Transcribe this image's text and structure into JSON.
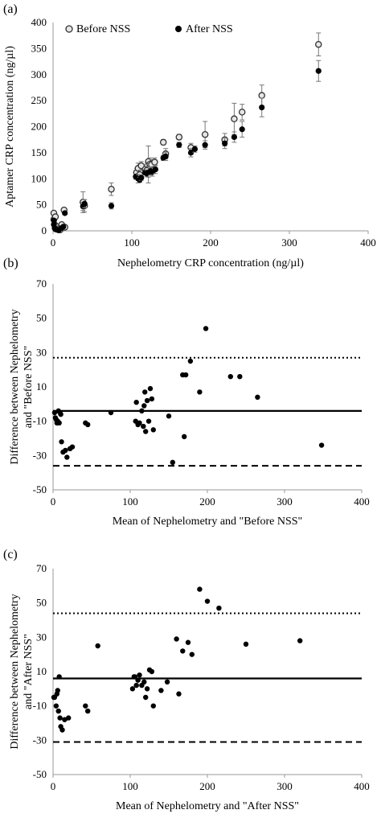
{
  "chart_data": [
    {
      "type": "scatter",
      "panel_label": "(a)",
      "xlabel": "Nephelometry CRP concentration (ng/µl)",
      "ylabel": "Aptamer CRP concentration (ng/µl)",
      "xlim": [
        0,
        400
      ],
      "ylim": [
        0,
        400
      ],
      "xticks": [
        0,
        100,
        200,
        300,
        400
      ],
      "yticks": [
        0,
        50,
        100,
        150,
        200,
        250,
        300,
        350,
        400
      ],
      "grid": false,
      "legend_position": "top",
      "series": [
        {
          "name": "Before NSS",
          "marker": "open-circle",
          "points": [
            [
              1,
              34
            ],
            [
              1,
              22
            ],
            [
              2,
              12
            ],
            [
              3,
              27
            ],
            [
              4,
              5
            ],
            [
              5,
              8
            ],
            [
              7,
              4
            ],
            [
              9,
              2
            ],
            [
              11,
              12
            ],
            [
              14,
              40
            ],
            [
              15,
              7
            ],
            [
              38,
              55
            ],
            [
              40,
              48
            ],
            [
              74,
              80
            ],
            [
              106,
              112
            ],
            [
              108,
              120
            ],
            [
              110,
              108
            ],
            [
              112,
              125
            ],
            [
              117,
              118
            ],
            [
              119,
              116
            ],
            [
              121,
              133
            ],
            [
              123,
              128
            ],
            [
              125,
              127
            ],
            [
              129,
              132
            ],
            [
              140,
              170
            ],
            [
              143,
              148
            ],
            [
              160,
              180
            ],
            [
              175,
              160
            ],
            [
              193,
              185
            ],
            [
              218,
              175
            ],
            [
              230,
              215
            ],
            [
              240,
              228
            ],
            [
              265,
              260
            ],
            [
              337,
              358
            ]
          ],
          "errors": [
            0,
            0,
            0,
            0,
            0,
            0,
            0,
            0,
            0,
            0,
            0,
            20,
            12,
            12,
            8,
            10,
            8,
            8,
            10,
            8,
            30,
            12,
            10,
            8,
            5,
            10,
            5,
            8,
            25,
            12,
            30,
            15,
            20,
            22
          ]
        },
        {
          "name": "After NSS",
          "marker": "filled-circle",
          "points": [
            [
              1,
              20
            ],
            [
              1,
              12
            ],
            [
              2,
              5
            ],
            [
              3,
              3
            ],
            [
              5,
              2
            ],
            [
              7,
              1
            ],
            [
              10,
              5
            ],
            [
              13,
              8
            ],
            [
              15,
              34
            ],
            [
              38,
              47
            ],
            [
              40,
              52
            ],
            [
              74,
              48
            ],
            [
              105,
              104
            ],
            [
              108,
              100
            ],
            [
              110,
              98
            ],
            [
              112,
              102
            ],
            [
              117,
              112
            ],
            [
              119,
              110
            ],
            [
              121,
              112
            ],
            [
              124,
              115
            ],
            [
              126,
              113
            ],
            [
              130,
              118
            ],
            [
              140,
              140
            ],
            [
              143,
              143
            ],
            [
              160,
              165
            ],
            [
              175,
              150
            ],
            [
              180,
              157
            ],
            [
              193,
              165
            ],
            [
              218,
              168
            ],
            [
              230,
              180
            ],
            [
              240,
              195
            ],
            [
              265,
              237
            ],
            [
              337,
              307
            ]
          ],
          "errors": [
            0,
            0,
            0,
            0,
            0,
            0,
            0,
            0,
            0,
            8,
            8,
            6,
            5,
            8,
            5,
            5,
            5,
            6,
            20,
            8,
            8,
            8,
            5,
            8,
            5,
            8,
            6,
            8,
            10,
            10,
            15,
            18,
            20
          ]
        }
      ]
    },
    {
      "type": "scatter",
      "panel_label": "(b)",
      "xlabel": "Mean of Nephelometry and \"Before NSS\"",
      "ylabel_lines": [
        "Difference between Nephelometry",
        "and \"Before NSS\""
      ],
      "xlim": [
        0,
        400
      ],
      "ylim": [
        -50,
        70
      ],
      "xticks": [
        0,
        100,
        200,
        300,
        400
      ],
      "yticks": [
        -50,
        -30,
        -10,
        10,
        30,
        50,
        70
      ],
      "grid": false,
      "reference_lines": [
        {
          "role": "mean",
          "y": -4,
          "style": "solid"
        },
        {
          "role": "upper",
          "y": 27,
          "style": "dotted"
        },
        {
          "role": "lower",
          "y": -36,
          "style": "dashed"
        }
      ],
      "points": [
        [
          2,
          -5
        ],
        [
          3,
          -8
        ],
        [
          4,
          -9
        ],
        [
          5,
          -11
        ],
        [
          6,
          -10
        ],
        [
          7,
          -4
        ],
        [
          8,
          -11
        ],
        [
          9,
          -5
        ],
        [
          10,
          -6
        ],
        [
          11,
          -22
        ],
        [
          13,
          -28
        ],
        [
          16,
          -27
        ],
        [
          18,
          -31
        ],
        [
          22,
          -26
        ],
        [
          25,
          -25
        ],
        [
          42,
          -11
        ],
        [
          45,
          -12
        ],
        [
          75,
          -5
        ],
        [
          107,
          -10
        ],
        [
          108,
          1
        ],
        [
          110,
          -12
        ],
        [
          112,
          -11
        ],
        [
          115,
          -4
        ],
        [
          117,
          -13
        ],
        [
          118,
          -1
        ],
        [
          119,
          7
        ],
        [
          120,
          -16
        ],
        [
          122,
          2
        ],
        [
          124,
          -10
        ],
        [
          126,
          9
        ],
        [
          128,
          3
        ],
        [
          130,
          -15
        ],
        [
          150,
          -7
        ],
        [
          155,
          -34
        ],
        [
          168,
          17
        ],
        [
          170,
          -19
        ],
        [
          172,
          17
        ],
        [
          178,
          25
        ],
        [
          190,
          7
        ],
        [
          198,
          44
        ],
        [
          230,
          16
        ],
        [
          242,
          16
        ],
        [
          265,
          4
        ],
        [
          348,
          -24
        ]
      ]
    },
    {
      "type": "scatter",
      "panel_label": "(c)",
      "xlabel": "Mean of Nephelometry and \"After NSS\"",
      "ylabel_lines": [
        "Difference between Nephelometry",
        "and \"After NSS\""
      ],
      "xlim": [
        0,
        400
      ],
      "ylim": [
        -50,
        70
      ],
      "xticks": [
        0,
        100,
        200,
        300,
        400
      ],
      "yticks": [
        -50,
        -30,
        -10,
        10,
        30,
        50,
        70
      ],
      "grid": false,
      "reference_lines": [
        {
          "role": "mean",
          "y": 6,
          "style": "solid"
        },
        {
          "role": "upper",
          "y": 44,
          "style": "dotted"
        },
        {
          "role": "lower",
          "y": -31,
          "style": "dashed"
        }
      ],
      "points": [
        [
          1,
          -5
        ],
        [
          2,
          -5
        ],
        [
          4,
          -10
        ],
        [
          5,
          -3
        ],
        [
          6,
          -1
        ],
        [
          7,
          -13
        ],
        [
          8,
          7
        ],
        [
          9,
          -17
        ],
        [
          10,
          -22
        ],
        [
          12,
          -24
        ],
        [
          15,
          -18
        ],
        [
          20,
          -17
        ],
        [
          42,
          -10
        ],
        [
          45,
          -13
        ],
        [
          58,
          25
        ],
        [
          103,
          0
        ],
        [
          105,
          7
        ],
        [
          106,
          7
        ],
        [
          108,
          2
        ],
        [
          110,
          5
        ],
        [
          112,
          8
        ],
        [
          115,
          2
        ],
        [
          118,
          4
        ],
        [
          120,
          -5
        ],
        [
          122,
          0
        ],
        [
          125,
          11
        ],
        [
          128,
          10
        ],
        [
          130,
          -10
        ],
        [
          140,
          -1
        ],
        [
          148,
          4
        ],
        [
          160,
          29
        ],
        [
          163,
          -3
        ],
        [
          168,
          22
        ],
        [
          175,
          27
        ],
        [
          180,
          20
        ],
        [
          190,
          58
        ],
        [
          200,
          51
        ],
        [
          215,
          47
        ],
        [
          250,
          26
        ],
        [
          320,
          28
        ]
      ]
    }
  ]
}
